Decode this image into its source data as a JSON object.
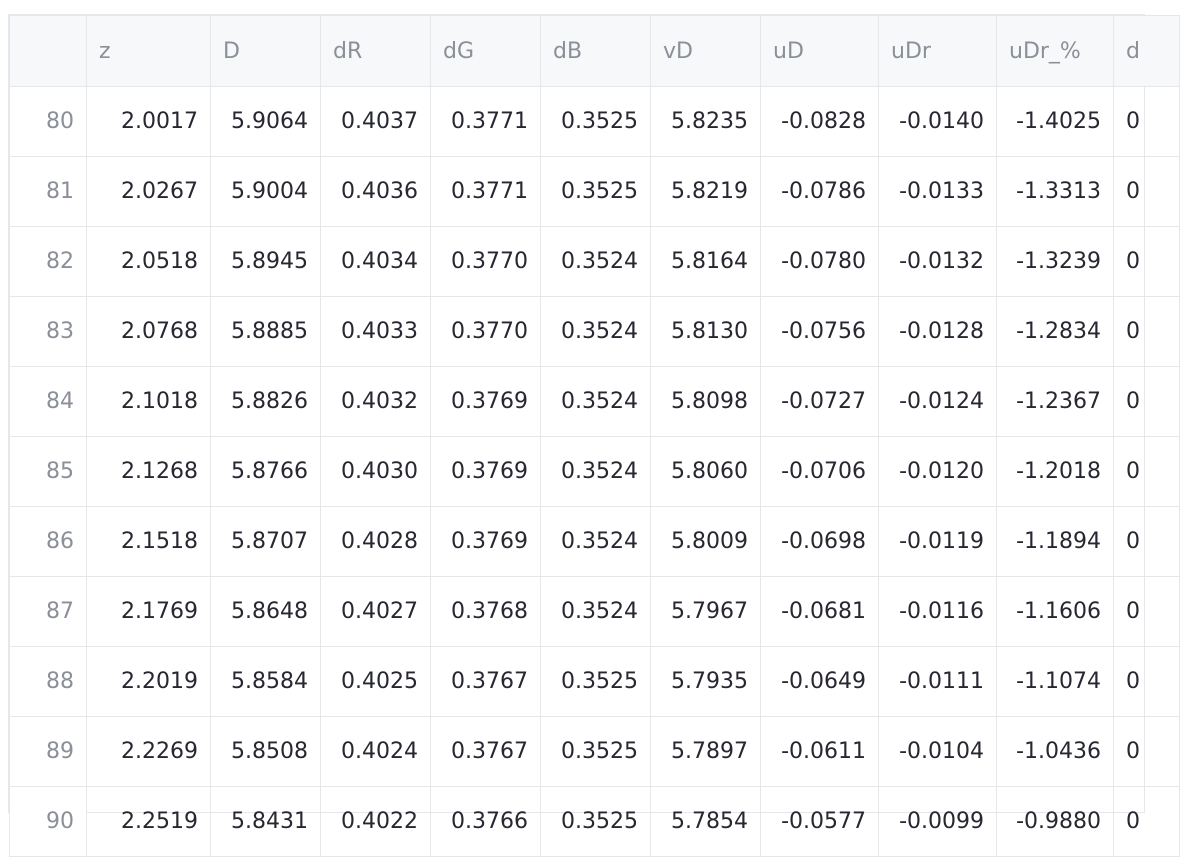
{
  "table": {
    "columns": [
      "",
      "z",
      "D",
      "dR",
      "dG",
      "dB",
      "vD",
      "uD",
      "uDr",
      "uDr_%",
      "d"
    ],
    "rows": [
      {
        "index": "80",
        "cells": [
          "2.0017",
          "5.9064",
          "0.4037",
          "0.3771",
          "0.3525",
          "5.8235",
          "-0.0828",
          "-0.0140",
          "-1.4025",
          "0"
        ]
      },
      {
        "index": "81",
        "cells": [
          "2.0267",
          "5.9004",
          "0.4036",
          "0.3771",
          "0.3525",
          "5.8219",
          "-0.0786",
          "-0.0133",
          "-1.3313",
          "0"
        ]
      },
      {
        "index": "82",
        "cells": [
          "2.0518",
          "5.8945",
          "0.4034",
          "0.3770",
          "0.3524",
          "5.8164",
          "-0.0780",
          "-0.0132",
          "-1.3239",
          "0"
        ]
      },
      {
        "index": "83",
        "cells": [
          "2.0768",
          "5.8885",
          "0.4033",
          "0.3770",
          "0.3524",
          "5.8130",
          "-0.0756",
          "-0.0128",
          "-1.2834",
          "0"
        ]
      },
      {
        "index": "84",
        "cells": [
          "2.1018",
          "5.8826",
          "0.4032",
          "0.3769",
          "0.3524",
          "5.8098",
          "-0.0727",
          "-0.0124",
          "-1.2367",
          "0"
        ]
      },
      {
        "index": "85",
        "cells": [
          "2.1268",
          "5.8766",
          "0.4030",
          "0.3769",
          "0.3524",
          "5.8060",
          "-0.0706",
          "-0.0120",
          "-1.2018",
          "0"
        ]
      },
      {
        "index": "86",
        "cells": [
          "2.1518",
          "5.8707",
          "0.4028",
          "0.3769",
          "0.3524",
          "5.8009",
          "-0.0698",
          "-0.0119",
          "-1.1894",
          "0"
        ]
      },
      {
        "index": "87",
        "cells": [
          "2.1769",
          "5.8648",
          "0.4027",
          "0.3768",
          "0.3524",
          "5.7967",
          "-0.0681",
          "-0.0116",
          "-1.1606",
          "0"
        ]
      },
      {
        "index": "88",
        "cells": [
          "2.2019",
          "5.8584",
          "0.4025",
          "0.3767",
          "0.3525",
          "5.7935",
          "-0.0649",
          "-0.0111",
          "-1.1074",
          "0"
        ]
      },
      {
        "index": "89",
        "cells": [
          "2.2269",
          "5.8508",
          "0.4024",
          "0.3767",
          "0.3525",
          "5.7897",
          "-0.0611",
          "-0.0104",
          "-1.0436",
          "0"
        ]
      },
      {
        "index": "90",
        "cells": [
          "2.2519",
          "5.8431",
          "0.4022",
          "0.3766",
          "0.3525",
          "5.7854",
          "-0.0577",
          "-0.0099",
          "-0.9880",
          "0"
        ]
      }
    ]
  },
  "colors": {
    "border": "#e6e7eb",
    "header_bg": "#f7f8fa",
    "header_text": "#8b8f98",
    "cell_text": "#262730",
    "index_text": "#8b8f98"
  }
}
